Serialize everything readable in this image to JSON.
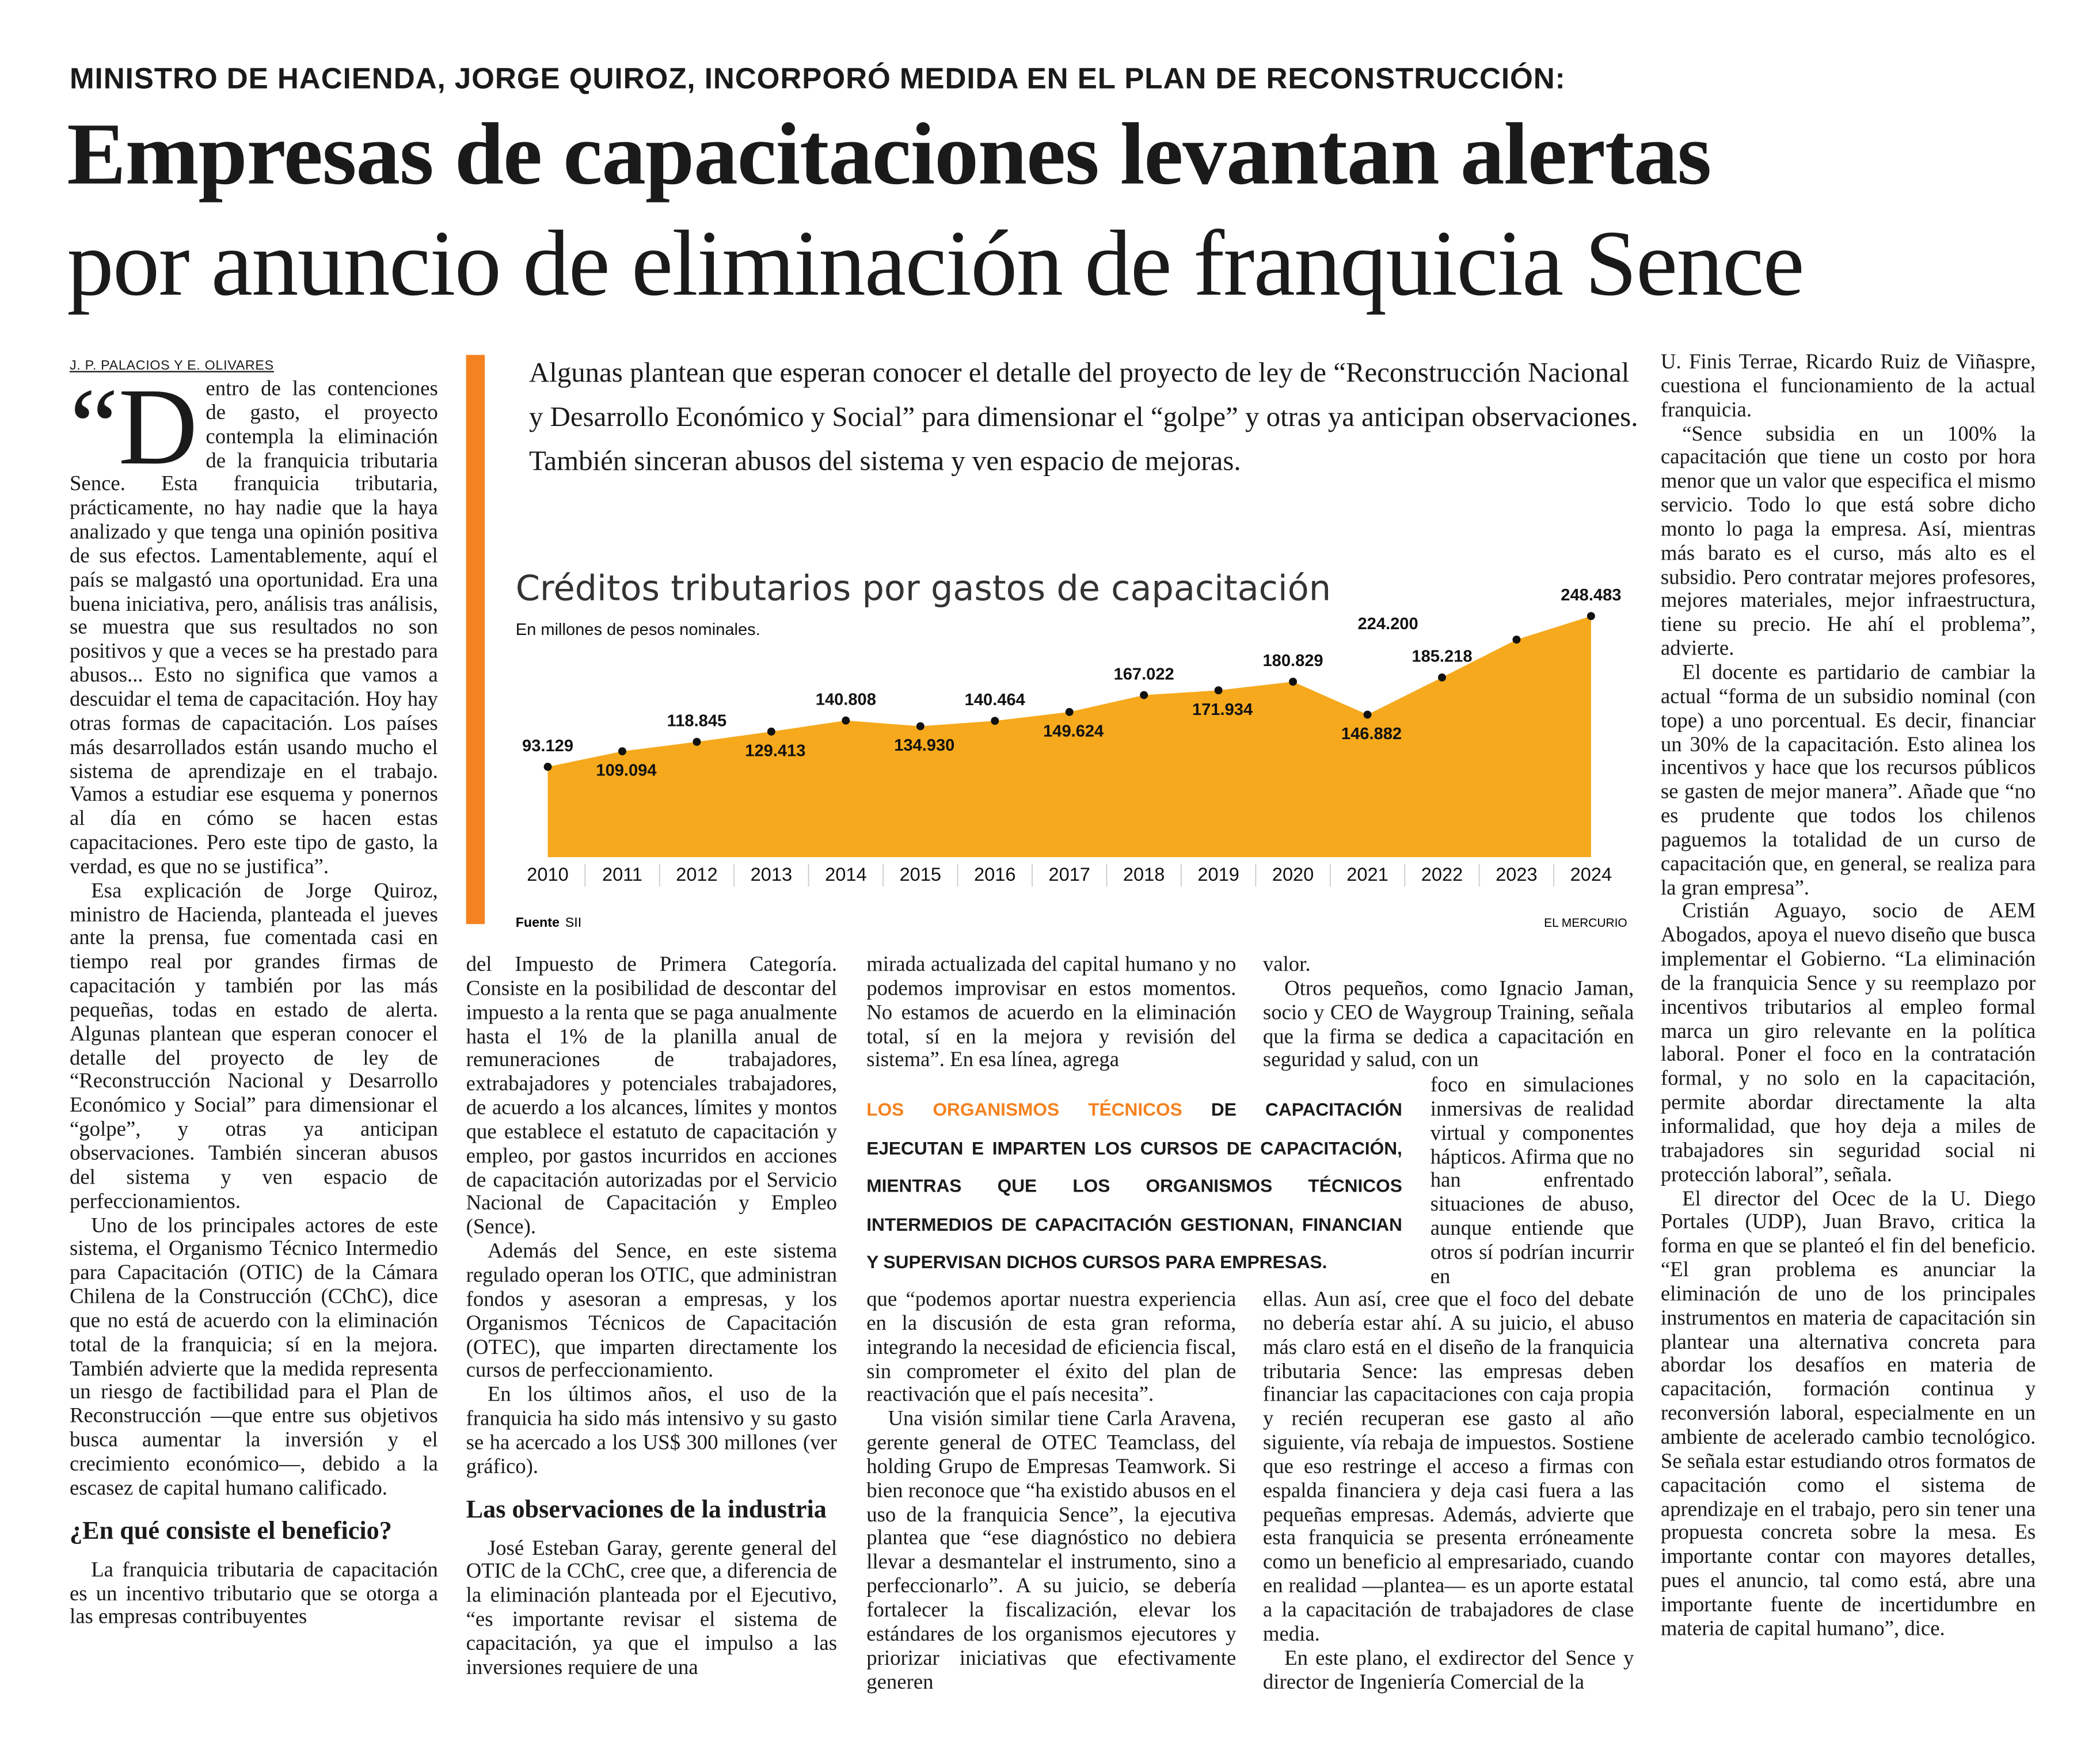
{
  "header": {
    "kicker": "MINISTRO DE HACIENDA, JORGE QUIROZ, INCORPORÓ MEDIDA EN EL PLAN DE RECONSTRUCCIÓN:",
    "title_line1": "Empresas de capacitaciones levantan alertas",
    "title_line2": "por anuncio de eliminación de franquicia Sence",
    "byline": "J. P. PALACIOS Y E. OLIVARES"
  },
  "lead": "Algunas plantean que esperan conocer el detalle del proyecto de ley de “Reconstrucción Nacional y Desarrollo Económico y Social” para dimensionar el “golpe” y otras ya anticipan observaciones. También sinceran abusos del sistema y ven espacio de mejoras.",
  "chart_data": {
    "type": "area",
    "title": "Créditos tributarios por gastos de capacitación",
    "subtitle": "En millones de pesos nominales.",
    "source_label": "Fuente",
    "source": "SII",
    "credit": "EL MERCURIO",
    "color": "#f6a91d",
    "categories": [
      "2010",
      "2011",
      "2012",
      "2013",
      "2014",
      "2015",
      "2016",
      "2017",
      "2018",
      "2019",
      "2020",
      "2021",
      "2022",
      "2023",
      "2024"
    ],
    "values": [
      93129,
      109094,
      118845,
      129413,
      140808,
      134930,
      140464,
      149624,
      167022,
      171934,
      180829,
      146882,
      185218,
      224200,
      248483
    ],
    "value_labels": [
      "93.129",
      "109.094",
      "118.845",
      "129.413",
      "140.808",
      "134.930",
      "140.464",
      "149.624",
      "167.022",
      "171.934",
      "180.829",
      "146.882",
      "185.218",
      "224.200",
      "248.483"
    ]
  },
  "columns": {
    "col1": [
      "“Dentro de las contenciones de gasto, el proyecto contempla la eliminación de la franquicia tributaria Sence. Esta franquicia tributaria, prácticamente, no hay nadie que la haya analizado y que tenga una opinión positiva de sus efectos. Lamentablemente, aquí el país se malgastó una oportunidad. Era una buena iniciativa, pero, análisis tras análisis, se muestra que sus resultados no son positivos y que a veces se ha prestado para abusos... Esto no significa que vamos a descuidar el tema de capacitación. Hoy hay otras formas de capacitación. Los países más desarrollados están usando mucho el sistema de aprendizaje en el trabajo. Vamos a estudiar ese esquema y ponernos al día en cómo se hacen estas capacitaciones. Pero este tipo de gasto, la verdad, es que no se justifica”.",
      "Esa explicación de Jorge Quiroz, ministro de Hacienda, planteada el jueves ante la prensa, fue comentada casi en tiempo real por grandes firmas de capacitación y también por las más pequeñas, todas en estado de alerta. Algunas plantean que esperan conocer el detalle del proyecto de ley de “Reconstrucción Nacional y Desarrollo Económico y Social” para dimensionar el “golpe”, y otras ya anticipan observaciones. También sinceran abusos del sistema y ven espacio de perfeccionamientos.",
      "Uno de los principales actores de este sistema, el Organismo Técnico Intermedio para Capacitación (OTIC) de la Cámara Chilena de la Construcción (CChC), dice que no está de acuerdo con la eliminación total de la franquicia; sí en la mejora. También advierte que la medida representa un riesgo de factibilidad para el Plan de Reconstrucción —que entre sus objetivos busca aumentar la inversión y el crecimiento económico—, debido a la escasez de capital humano calificado."
    ],
    "subhead1": "¿En qué consiste el beneficio?",
    "col1_end": "La franquicia tributaria de capacitación es un incentivo tributario que se otorga a las empresas contribuyentes",
    "col2": [
      "del Impuesto de Primera Categoría. Consiste en la posibilidad de descontar del impuesto a la renta que se paga anualmente hasta el 1% de la planilla anual de remuneraciones de trabajadores, extrabajadores y potenciales trabajadores, de acuerdo a los alcances, límites y montos que establece el estatuto de capacitación y empleo, por gastos incurridos en acciones de capacitación autorizadas por el Servicio Nacional de Capacitación y Empleo (Sence).",
      "Además del Sence, en este sistema regulado operan los OTIC, que administran fondos y asesoran a empresas, y los Organismos Técnicos de Capacitación (OTEC), que imparten directamente los cursos de perfeccionamiento.",
      "En los últimos años, el uso de la franquicia ha sido más intensivo y su gasto se ha acercado a los US$ 300 millones (ver gráfico)."
    ],
    "subhead2": "Las observaciones de la industria",
    "col2_end": "José Esteban Garay, gerente general del OTIC de la CChC, cree que, a diferencia de la eliminación planteada por el Ejecutivo, “es importante revisar el sistema de capacitación, ya que el impulso a las inversiones requiere de una",
    "col3_top": "mirada actualizada del capital humano y no podemos improvisar en estos momentos. No estamos de acuerdo en la eliminación total, sí en la mejora y revisión del sistema”. En esa línea, agrega",
    "col3_bottom": [
      "que “podemos aportar nuestra experiencia en la discusión de esta gran reforma, integrando la necesidad de eficiencia fiscal, sin comprometer el éxito del plan de reactivación que el país necesita”.",
      "Una visión similar tiene Carla Aravena, gerente general de OTEC Teamclass, del holding Grupo de Empresas Teamwork. Si bien reconoce que “ha existido abusos en el uso de la franquicia Sence”, la ejecutiva plantea que “ese diagnóstico no debiera llevar a desmantelar el instrumento, sino a perfeccionarlo”. A su juicio, se debería fortalecer la fiscalización, elevar los estándares de los organismos ejecutores y priorizar iniciativas que efectivamente generen"
    ],
    "col4_top": [
      "valor.",
      "Otros pequeños, como Ignacio Jaman, socio y CEO de Waygroup Training, señala que la firma se dedica a capacitación en seguridad y salud, con un"
    ],
    "col4_narrow": "foco en simulaciones inmersivas de realidad virtual y componentes hápticos. Afirma que no han enfrentado situaciones de abuso, aunque entiende que otros sí podrían incurrir en",
    "col4_bottom": [
      "ellas. Aun así, cree que el foco del debate no debería estar ahí. A su juicio, el abuso más claro está en el diseño de la franquicia tributaria Sence: las empresas deben financiar las capacitaciones con caja propia y recién recuperan ese gasto al año siguiente, vía rebaja de impuestos. Sostiene que eso restringe el acceso a firmas con espalda financiera y deja casi fuera a las pequeñas empresas. Además, advierte que esta franquicia se presenta erróneamente como un beneficio al empresariado, cuando en realidad —plantea— es un aporte estatal a la capacitación de trabajadores de clase media.",
      "En este plano, el exdirector del Sence y director de Ingeniería Comercial de la"
    ],
    "col5": [
      "U. Finis Terrae, Ricardo Ruiz de Viñaspre, cuestiona el funcionamiento de la actual franquicia.",
      "“Sence subsidia en un 100% la capacitación que tiene un costo por hora menor que un valor que especifica el mismo servicio. Todo lo que está sobre dicho monto lo paga la empresa. Así, mientras más barato es el curso, más alto es el subsidio. Pero contratar mejores profesores, mejores materiales, mejor infraestructura, tiene su precio. He ahí el problema”, advierte.",
      "El docente es partidario de cambiar la actual “forma de un subsidio nominal (con tope) a uno porcentual. Es decir, financiar un 30% de la capacitación. Esto alinea los incentivos y hace que los recursos públicos se gasten de mejor manera”. Añade que “no es prudente que todos los chilenos paguemos la totalidad de un curso de capacitación que, en general, se realiza para la gran empresa”.",
      "Cristián Aguayo, socio de AEM Abogados, apoya el nuevo diseño que busca implementar el Gobierno. “La eliminación de la franquicia Sence y su reemplazo por incentivos tributarios al empleo formal marca un giro relevante en la política laboral. Poner el foco en la contratación formal, y no solo en la capacitación, permite abordar directamente la alta informalidad, que hoy deja a miles de trabajadores sin seguridad social ni protección laboral”, señala.",
      "El director del Ocec de la U. Diego Portales (UDP), Juan Bravo, critica la forma en que se planteó el fin del beneficio. “El gran problema es anunciar la eliminación de uno de los principales instrumentos en materia de capacitación sin plantear una alternativa concreta para abordar los desafíos en materia de capacitación, formación continua y reconversión laboral, especialmente en un ambiente de acelerado cambio tecnológico. Se señala estar estudiando otros formatos de capacitación como el sistema de aprendizaje en el trabajo, pero sin tener una propuesta concreta sobre la mesa. Es importante contar con mayores detalles, pues el anuncio, tal como está, abre una importante fuente de incertidumbre en materia de capital humano”, dice."
    ]
  },
  "pullquote": {
    "highlight": "LOS ORGANISMOS TÉCNICOS",
    "text": "DE CAPACITACIÓN EJECUTAN E IMPARTEN LOS CURSOS DE CAPACITACIÓN, MIENTRAS QUE LOS ORGANISMOS TÉCNICOS INTERMEDIOS DE CAPACITACIÓN GESTIONAN, FINANCIAN Y SUPERVISAN DICHOS CURSOS PARA EMPRESAS."
  }
}
